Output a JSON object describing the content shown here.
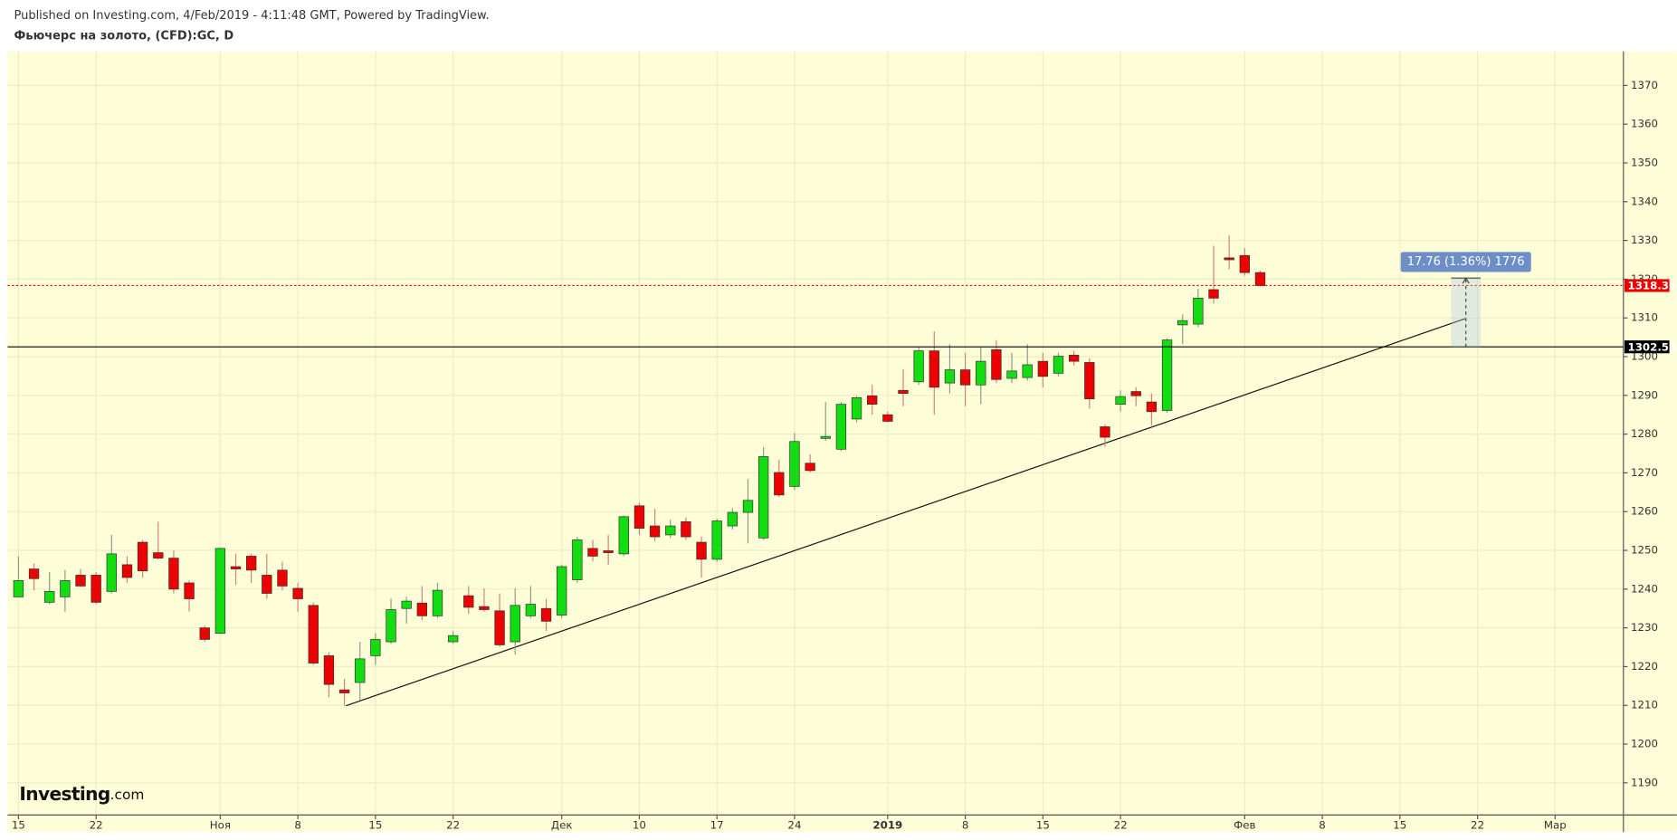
{
  "chart_data": {
    "type": "candlestick",
    "published": "Published on Investing.com, 4/Feb/2019 - 4:11:48 GMT, Powered by TradingView.",
    "title": "Фьючерс на золото, (CFD):GC, D",
    "watermark": {
      "brand": "Investing",
      "suffix": ".com"
    },
    "x": [
      0,
      1,
      2,
      3,
      4,
      5,
      6,
      7,
      8,
      9,
      10,
      11,
      12,
      13,
      14,
      15,
      16,
      17,
      18,
      19,
      20,
      21,
      22,
      23,
      24,
      25,
      26,
      27,
      28,
      29,
      30,
      31,
      32,
      33,
      34,
      35,
      36,
      37,
      38,
      39,
      40,
      41,
      42,
      43,
      44,
      45,
      46,
      47,
      48,
      49,
      50,
      51,
      52,
      53,
      54,
      55,
      56,
      57,
      58,
      59,
      60,
      61,
      62,
      63,
      64,
      65,
      66,
      67,
      68,
      69,
      70,
      71,
      72,
      73,
      74,
      75,
      76,
      77,
      78,
      79,
      80
    ],
    "open": [
      1238.0,
      1245.2,
      1236.6,
      1238.0,
      1243.6,
      1243.6,
      1239.4,
      1246.3,
      1252.1,
      1249.4,
      1248.0,
      1241.6,
      1230.0,
      1228.6,
      1245.8,
      1248.5,
      1243.6,
      1244.9,
      1240.2,
      1235.8,
      1222.8,
      1214.0,
      1215.9,
      1222.8,
      1226.4,
      1235.0,
      1236.4,
      1233.1,
      1226.4,
      1238.3,
      1235.5,
      1234.4,
      1226.4,
      1233.1,
      1235.0,
      1233.3,
      1242.4,
      1250.5,
      1249.9,
      1249.1,
      1261.5,
      1256.3,
      1254.0,
      1257.4,
      1252.1,
      1247.7,
      1256.3,
      1259.8,
      1253.2,
      1270.1,
      1266.5,
      1272.5,
      1278.9,
      1276.1,
      1283.9,
      1289.9,
      1285.0,
      1291.3,
      1293.5,
      1301.5,
      1293.2,
      1296.6,
      1292.7,
      1301.8,
      1294.4,
      1294.6,
      1298.8,
      1295.7,
      1300.4,
      1298.5,
      1281.9,
      1287.7,
      1291.0,
      1288.3,
      1286.1,
      1308.2,
      1308.4,
      1317.3,
      1325.5,
      1326.1,
      1321.7
    ],
    "high": [
      1248.5,
      1246.6,
      1244.4,
      1244.9,
      1245.2,
      1244.4,
      1254.0,
      1248.5,
      1252.7,
      1257.4,
      1249.9,
      1242.2,
      1230.6,
      1250.7,
      1249.1,
      1249.1,
      1249.1,
      1247.1,
      1241.6,
      1236.6,
      1223.7,
      1216.8,
      1226.4,
      1228.6,
      1237.5,
      1238.0,
      1240.8,
      1241.6,
      1229.2,
      1240.8,
      1240.2,
      1238.9,
      1240.2,
      1240.8,
      1237.5,
      1246.3,
      1253.5,
      1252.7,
      1254.0,
      1259.0,
      1262.3,
      1260.7,
      1257.9,
      1258.5,
      1253.5,
      1258.2,
      1260.9,
      1268.4,
      1276.7,
      1273.4,
      1280.3,
      1274.8,
      1288.3,
      1288.3,
      1289.9,
      1292.7,
      1285.8,
      1296.8,
      1302.4,
      1306.5,
      1303.2,
      1301.0,
      1302.4,
      1304.3,
      1301.0,
      1303.2,
      1301.0,
      1301.0,
      1301.5,
      1299.6,
      1282.5,
      1291.3,
      1292.1,
      1290.5,
      1304.8,
      1310.9,
      1317.5,
      1328.6,
      1331.3,
      1328.0,
      1322.2
    ],
    "low": [
      1238.0,
      1239.7,
      1236.1,
      1234.2,
      1240.5,
      1236.1,
      1238.9,
      1241.6,
      1243.0,
      1247.7,
      1238.9,
      1234.2,
      1226.4,
      1228.4,
      1241.1,
      1241.6,
      1237.5,
      1239.7,
      1234.2,
      1220.4,
      1212.1,
      1209.9,
      1211.3,
      1220.4,
      1225.9,
      1231.1,
      1232.0,
      1232.5,
      1225.9,
      1233.6,
      1234.2,
      1225.1,
      1223.1,
      1232.5,
      1229.2,
      1232.5,
      1241.6,
      1247.1,
      1246.3,
      1248.5,
      1254.0,
      1252.4,
      1253.2,
      1252.7,
      1243.0,
      1247.1,
      1255.4,
      1251.8,
      1252.7,
      1263.7,
      1265.6,
      1270.1,
      1278.3,
      1275.6,
      1283.0,
      1285.0,
      1283.0,
      1287.2,
      1292.7,
      1285.0,
      1290.5,
      1287.2,
      1287.7,
      1293.2,
      1293.2,
      1293.8,
      1292.1,
      1294.9,
      1297.7,
      1286.6,
      1276.7,
      1285.8,
      1287.2,
      1282.2,
      1285.5,
      1303.2,
      1307.6,
      1313.7,
      1322.5,
      1320.9,
      1318.1
    ],
    "close": [
      1242.2,
      1242.7,
      1239.4,
      1242.2,
      1240.8,
      1236.6,
      1249.1,
      1243.0,
      1244.7,
      1248.0,
      1240.0,
      1237.5,
      1227.0,
      1250.5,
      1245.2,
      1244.9,
      1238.9,
      1240.8,
      1237.5,
      1220.9,
      1215.4,
      1213.2,
      1222.0,
      1227.0,
      1234.7,
      1236.9,
      1233.1,
      1239.7,
      1228.0,
      1235.3,
      1234.7,
      1225.6,
      1235.8,
      1236.1,
      1231.7,
      1245.8,
      1252.7,
      1248.5,
      1249.4,
      1258.7,
      1255.7,
      1253.5,
      1256.3,
      1253.5,
      1247.7,
      1257.6,
      1259.8,
      1262.9,
      1274.2,
      1264.3,
      1278.1,
      1270.6,
      1279.4,
      1287.7,
      1289.4,
      1287.7,
      1283.3,
      1290.5,
      1301.5,
      1292.1,
      1296.6,
      1292.7,
      1298.8,
      1294.1,
      1296.3,
      1297.9,
      1294.9,
      1300.1,
      1298.8,
      1289.1,
      1279.2,
      1289.7,
      1289.9,
      1285.8,
      1304.3,
      1309.3,
      1315.1,
      1315.1,
      1325.0,
      1321.7,
      1318.35
    ],
    "up_color": "#11dd11",
    "down_color": "#ee0000",
    "outline_color": "#333333",
    "xlim": [
      -0.7,
      103.4
    ],
    "ylim": [
      1181.7,
      1378.8
    ],
    "xticks": [
      {
        "value": 0,
        "label": "15"
      },
      {
        "value": 5,
        "label": "22"
      },
      {
        "value": 13,
        "label": "Ноя"
      },
      {
        "value": 18,
        "label": "8"
      },
      {
        "value": 23,
        "label": "15"
      },
      {
        "value": 28,
        "label": "22"
      },
      {
        "value": 35,
        "label": "Дек"
      },
      {
        "value": 40,
        "label": "10"
      },
      {
        "value": 45,
        "label": "17"
      },
      {
        "value": 50,
        "label": "24"
      },
      {
        "value": 56,
        "label": "2019",
        "bold": true
      },
      {
        "value": 61,
        "label": "8"
      },
      {
        "value": 66,
        "label": "15"
      },
      {
        "value": 71,
        "label": "22"
      },
      {
        "value": 79,
        "label": "Фев"
      },
      {
        "value": 84,
        "label": "8"
      },
      {
        "value": 89,
        "label": "15"
      },
      {
        "value": 94,
        "label": "22"
      },
      {
        "value": 99,
        "label": "Мар"
      }
    ],
    "yticks": [
      1190,
      1200,
      1210,
      1220,
      1230,
      1240,
      1250,
      1260,
      1270,
      1280,
      1290,
      1300,
      1310,
      1320,
      1330,
      1340,
      1350,
      1360,
      1370
    ],
    "grid": true,
    "background": "#fdfdd8",
    "hlines": [
      {
        "value": 1302.53,
        "color": "#000000",
        "dash": false
      },
      {
        "value": 1318.35,
        "color": "#ee0000",
        "dash": true
      }
    ],
    "trend_line": {
      "x": [
        21.1,
        93.2
      ],
      "y": [
        1209.9,
        1309.8
      ]
    },
    "measure": {
      "x": [
        92.3,
        94.2
      ],
      "from": 1302.53,
      "to": 1320.29,
      "label": "17.76 (1.36%) 1776"
    }
  }
}
